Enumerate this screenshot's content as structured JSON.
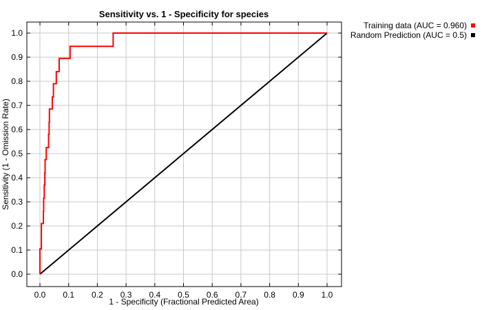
{
  "chart_data": {
    "type": "line",
    "title": "Sensitivity vs. 1 - Specificity for species",
    "xlabel": "1 - Specificity  (Fractional Predicted Area)",
    "ylabel": "Sensitivity  (1 - Omission Rate)",
    "xlim": [
      0,
      1
    ],
    "ylim": [
      0,
      1
    ],
    "xticks": [
      "0.0",
      "0.1",
      "0.2",
      "0.3",
      "0.4",
      "0.5",
      "0.6",
      "0.7",
      "0.8",
      "0.9",
      "1.0"
    ],
    "yticks": [
      "0.0",
      "0.1",
      "0.2",
      "0.3",
      "0.4",
      "0.5",
      "0.6",
      "0.7",
      "0.8",
      "0.9",
      "1.0"
    ],
    "grid": true,
    "legend_position": "top-right, outside plot",
    "series": [
      {
        "name": "Training data (AUC = 0.960)",
        "color": "#ff0000",
        "points": [
          [
            0.0,
            0.0
          ],
          [
            0.0,
            0.105
          ],
          [
            0.005,
            0.105
          ],
          [
            0.005,
            0.21
          ],
          [
            0.012,
            0.21
          ],
          [
            0.012,
            0.26
          ],
          [
            0.013,
            0.26
          ],
          [
            0.013,
            0.315
          ],
          [
            0.015,
            0.315
          ],
          [
            0.015,
            0.37
          ],
          [
            0.017,
            0.37
          ],
          [
            0.017,
            0.42
          ],
          [
            0.018,
            0.42
          ],
          [
            0.018,
            0.475
          ],
          [
            0.022,
            0.475
          ],
          [
            0.022,
            0.525
          ],
          [
            0.03,
            0.525
          ],
          [
            0.03,
            0.58
          ],
          [
            0.032,
            0.58
          ],
          [
            0.032,
            0.63
          ],
          [
            0.033,
            0.63
          ],
          [
            0.033,
            0.685
          ],
          [
            0.043,
            0.685
          ],
          [
            0.043,
            0.735
          ],
          [
            0.047,
            0.735
          ],
          [
            0.047,
            0.79
          ],
          [
            0.057,
            0.79
          ],
          [
            0.057,
            0.84
          ],
          [
            0.067,
            0.84
          ],
          [
            0.067,
            0.895
          ],
          [
            0.105,
            0.895
          ],
          [
            0.105,
            0.945
          ],
          [
            0.255,
            0.945
          ],
          [
            0.255,
            1.0
          ],
          [
            1.0,
            1.0
          ]
        ]
      },
      {
        "name": "Random Prediction (AUC = 0.5)",
        "color": "#000000",
        "points": [
          [
            0.0,
            0.0
          ],
          [
            1.0,
            1.0
          ]
        ]
      }
    ]
  }
}
